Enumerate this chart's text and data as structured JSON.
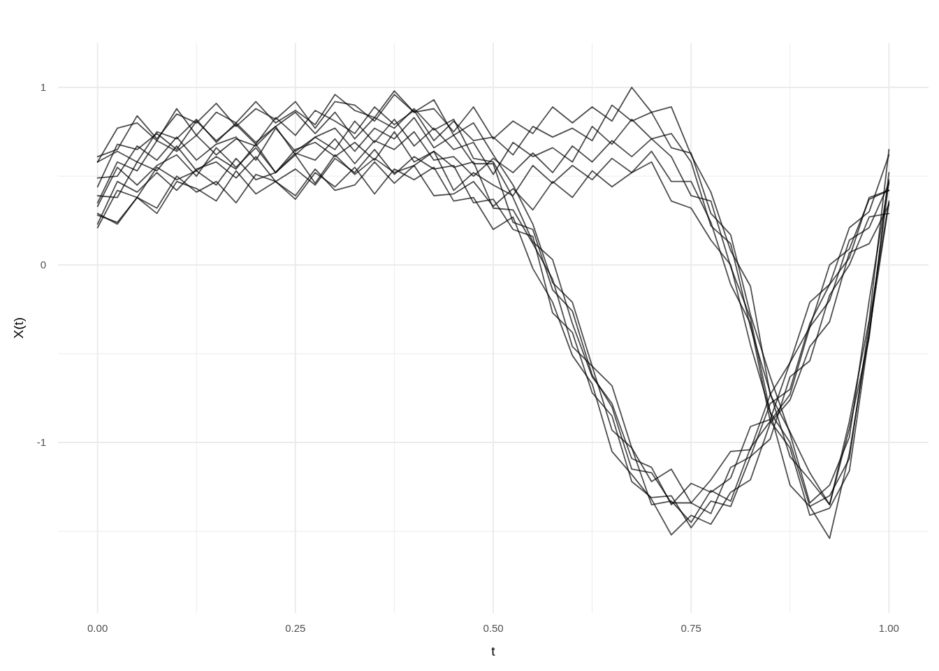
{
  "chart_data": {
    "type": "line",
    "xlabel": "t",
    "ylabel": "X(t)",
    "grid": true,
    "xlim": [
      -0.05,
      1.05
    ],
    "ylim": [
      -1.96,
      1.25
    ],
    "xticks": [
      {
        "value": 0,
        "label": "0.00"
      },
      {
        "value": 0.125,
        "label": null
      },
      {
        "value": 0.25,
        "label": "0.25"
      },
      {
        "value": 0.375,
        "label": null
      },
      {
        "value": 0.5,
        "label": "0.50"
      },
      {
        "value": 0.625,
        "label": null
      },
      {
        "value": 0.75,
        "label": "0.75"
      },
      {
        "value": 0.875,
        "label": null
      },
      {
        "value": 1,
        "label": "1.00"
      }
    ],
    "yticks": [
      {
        "value": -1.5,
        "label": null
      },
      -1,
      {
        "value": -0.5,
        "label": null
      },
      0,
      {
        "value": 0.5,
        "label": null
      },
      1
    ],
    "x": [
      0,
      0.025,
      0.05,
      0.075,
      0.1,
      0.125,
      0.15,
      0.175,
      0.2,
      0.225,
      0.25,
      0.275,
      0.3,
      0.325,
      0.35,
      0.375,
      0.4,
      0.425,
      0.45,
      0.475,
      0.5,
      0.525,
      0.55,
      0.575,
      0.6,
      0.625,
      0.65,
      0.675,
      0.7,
      0.725,
      0.75,
      0.775,
      0.8,
      0.825,
      0.85,
      0.875,
      0.9,
      0.925,
      0.95,
      0.975,
      1
    ],
    "series": [
      {
        "color": "#000000",
        "values": [
          0.28,
          0.24,
          0.38,
          0.29,
          0.47,
          0.43,
          0.36,
          0.53,
          0.4,
          0.47,
          0.37,
          0.52,
          0.44,
          0.55,
          0.4,
          0.54,
          0.48,
          0.55,
          0.36,
          0.38,
          0.2,
          0.27,
          -0.02,
          -0.21,
          -0.51,
          -0.67,
          -1.05,
          -1.18,
          -1.32,
          -1.52,
          -1.41,
          -1.46,
          -1.28,
          -1.21,
          -0.89,
          -0.76,
          -0.46,
          -0.32,
          0.07,
          0.12,
          0.34
        ]
      },
      {
        "color": "#000000",
        "values": [
          0.23,
          0.47,
          0.41,
          0.52,
          0.42,
          0.54,
          0.58,
          0.49,
          0.61,
          0.47,
          0.54,
          0.45,
          0.6,
          0.52,
          0.65,
          0.51,
          0.61,
          0.54,
          0.56,
          0.35,
          0.37,
          0.2,
          0.16,
          -0.27,
          -0.38,
          -0.72,
          -0.85,
          -1.22,
          -1.31,
          -1.3,
          -1.48,
          -1.33,
          -1.36,
          -1.08,
          -0.98,
          -0.63,
          -0.54,
          -0.17,
          0.0,
          0.27,
          0.29
        ]
      },
      {
        "color": "#000000",
        "values": [
          0.39,
          0.38,
          0.58,
          0.53,
          0.67,
          0.53,
          0.61,
          0.54,
          0.68,
          0.52,
          0.65,
          0.69,
          0.61,
          0.69,
          0.59,
          0.75,
          0.58,
          0.64,
          0.55,
          0.58,
          0.32,
          0.31,
          0.12,
          -0.08,
          -0.46,
          -0.57,
          -0.93,
          -1.03,
          -1.35,
          -1.33,
          -1.45,
          -1.27,
          -1.33,
          -1.03,
          -0.88,
          -0.73,
          -0.35,
          -0.2,
          0.14,
          0.21,
          0.46
        ]
      },
      {
        "color": "#000000",
        "values": [
          0.35,
          0.58,
          0.53,
          0.7,
          0.64,
          0.73,
          0.62,
          0.71,
          0.67,
          0.78,
          0.62,
          0.72,
          0.77,
          0.64,
          0.77,
          0.71,
          0.83,
          0.66,
          0.73,
          0.57,
          0.57,
          0.24,
          0.2,
          -0.14,
          -0.26,
          -0.62,
          -0.8,
          -1.15,
          -1.17,
          -1.34,
          -1.34,
          -1.4,
          -1.14,
          -1.08,
          -0.78,
          -0.7,
          -0.33,
          -0.11,
          0.04,
          0.38,
          0.42
        ]
      },
      {
        "color": "#000000",
        "values": [
          0.58,
          0.64,
          0.58,
          0.75,
          0.71,
          0.82,
          0.69,
          0.8,
          0.69,
          0.78,
          0.86,
          0.74,
          0.86,
          0.71,
          0.83,
          0.77,
          0.88,
          0.76,
          0.82,
          0.6,
          0.58,
          0.38,
          0.13,
          0.03,
          -0.33,
          -0.63,
          -0.78,
          -1.09,
          -1.14,
          -1.35,
          -1.23,
          -1.28,
          -1.2,
          -0.91,
          -0.87,
          -0.55,
          -0.35,
          0.0,
          0.09,
          0.37,
          0.42
        ]
      },
      {
        "color": "#000000",
        "values": [
          0.58,
          0.77,
          0.8,
          0.7,
          0.88,
          0.73,
          0.86,
          0.8,
          0.92,
          0.8,
          0.87,
          0.79,
          0.96,
          0.87,
          0.83,
          0.98,
          0.86,
          0.93,
          0.73,
          0.8,
          0.62,
          0.45,
          0.23,
          -0.1,
          -0.21,
          -0.57,
          -0.68,
          -1.03,
          -1.22,
          -1.15,
          -1.34,
          -1.21,
          -1.05,
          -1.04,
          -0.73,
          -0.55,
          -0.21,
          -0.11,
          0.21,
          0.3,
          0.62
        ]
      },
      {
        "color": "#000000",
        "values": [
          0.29,
          0.23,
          0.38,
          0.32,
          0.5,
          0.41,
          0.47,
          0.35,
          0.51,
          0.47,
          0.39,
          0.54,
          0.42,
          0.45,
          0.58,
          0.46,
          0.56,
          0.39,
          0.4,
          0.47,
          0.33,
          0.43,
          0.31,
          0.47,
          0.38,
          0.53,
          0.44,
          0.52,
          0.58,
          0.36,
          0.32,
          0.14,
          0.0,
          -0.45,
          -0.83,
          -1.24,
          -1.36,
          -1.54,
          -1.06,
          -0.38,
          0.35
        ]
      },
      {
        "color": "#000000",
        "values": [
          0.21,
          0.42,
          0.38,
          0.55,
          0.48,
          0.53,
          0.45,
          0.6,
          0.48,
          0.52,
          0.62,
          0.46,
          0.62,
          0.51,
          0.6,
          0.52,
          0.56,
          0.64,
          0.42,
          0.52,
          0.45,
          0.39,
          0.56,
          0.46,
          0.56,
          0.48,
          0.6,
          0.52,
          0.64,
          0.47,
          0.47,
          0.24,
          -0.11,
          -0.33,
          -0.88,
          -1.03,
          -1.41,
          -1.37,
          -1.16,
          -0.39,
          0.47
        ]
      },
      {
        "color": "#000000",
        "values": [
          0.33,
          0.55,
          0.45,
          0.56,
          0.62,
          0.5,
          0.66,
          0.55,
          0.66,
          0.52,
          0.63,
          0.59,
          0.71,
          0.57,
          0.7,
          0.65,
          0.75,
          0.59,
          0.61,
          0.5,
          0.6,
          0.52,
          0.63,
          0.52,
          0.67,
          0.58,
          0.7,
          0.61,
          0.71,
          0.61,
          0.39,
          0.36,
          -0.01,
          -0.3,
          -0.83,
          -1.0,
          -1.36,
          -1.3,
          -1.09,
          -0.33,
          0.36
        ]
      },
      {
        "color": "#000000",
        "values": [
          0.49,
          0.5,
          0.67,
          0.59,
          0.72,
          0.59,
          0.68,
          0.72,
          0.59,
          0.77,
          0.64,
          0.72,
          0.65,
          0.81,
          0.69,
          0.82,
          0.67,
          0.77,
          0.65,
          0.69,
          0.51,
          0.69,
          0.61,
          0.66,
          0.58,
          0.78,
          0.68,
          0.82,
          0.71,
          0.74,
          0.58,
          0.22,
          0.12,
          -0.35,
          -0.72,
          -1.08,
          -1.21,
          -1.35,
          -0.92,
          -0.41,
          0.52
        ]
      },
      {
        "color": "#000000",
        "values": [
          0.44,
          0.68,
          0.65,
          0.74,
          0.65,
          0.81,
          0.7,
          0.79,
          0.68,
          0.83,
          0.73,
          0.87,
          0.81,
          0.74,
          0.89,
          0.79,
          0.87,
          0.7,
          0.81,
          0.7,
          0.72,
          0.62,
          0.78,
          0.72,
          0.77,
          0.7,
          0.9,
          0.81,
          0.86,
          0.66,
          0.63,
          0.29,
          0.17,
          -0.28,
          -0.63,
          -0.95,
          -1.34,
          -1.24,
          -0.97,
          -0.2,
          0.48
        ]
      },
      {
        "color": "#000000",
        "values": [
          0.61,
          0.65,
          0.84,
          0.71,
          0.85,
          0.8,
          0.91,
          0.78,
          0.88,
          0.82,
          0.92,
          0.77,
          0.92,
          0.9,
          0.81,
          0.96,
          0.86,
          0.88,
          0.75,
          0.89,
          0.71,
          0.81,
          0.74,
          0.89,
          0.8,
          0.89,
          0.81,
          1.0,
          0.86,
          0.89,
          0.62,
          0.41,
          0.08,
          -0.12,
          -0.73,
          -0.94,
          -1.17,
          -1.35,
          -0.88,
          -0.31,
          0.65
        ]
      }
    ]
  }
}
